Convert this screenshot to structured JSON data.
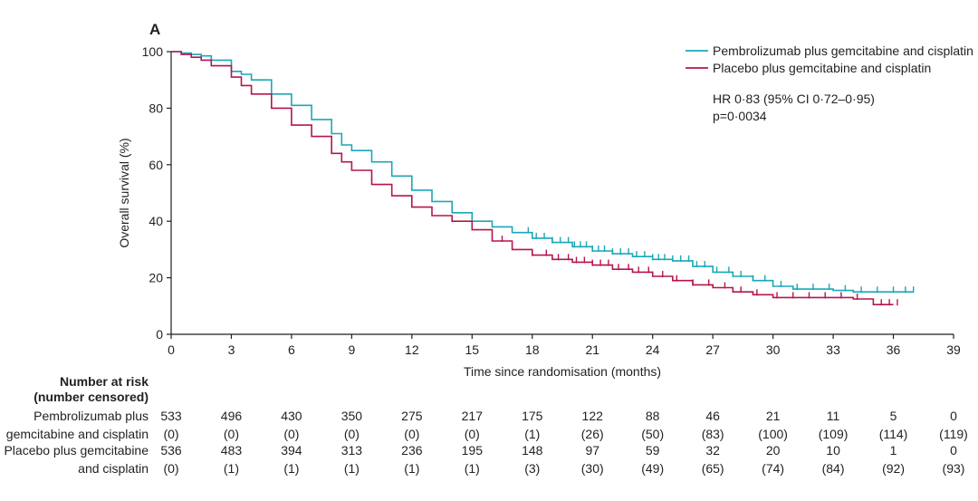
{
  "chart_data": {
    "type": "line",
    "panel_label": "A",
    "xlabel": "Time since randomisation (months)",
    "ylabel": "Overall survival (%)",
    "xlim": [
      0,
      39
    ],
    "ylim": [
      0,
      100
    ],
    "x_ticks": [
      0,
      3,
      6,
      9,
      12,
      15,
      18,
      21,
      24,
      27,
      30,
      33,
      36,
      39
    ],
    "y_ticks": [
      0,
      20,
      40,
      60,
      80,
      100
    ],
    "grid": false,
    "legend_position": "top-right",
    "hr_text": "HR 0·83 (95% CI 0·72–0·95)",
    "p_text": "p=0·0034",
    "series": [
      {
        "name": "Pembrolizumab plus gemcitabine and cisplatin",
        "color": "#1aa7b8",
        "x": [
          0,
          0.5,
          1,
          1.5,
          2,
          3,
          3.5,
          4,
          5,
          6,
          7,
          8,
          8.5,
          9,
          10,
          11,
          12,
          13,
          14,
          15,
          16,
          17,
          18,
          19,
          20,
          21,
          22,
          23,
          24,
          25,
          26,
          27,
          28,
          29,
          30,
          31,
          32,
          33,
          34,
          35,
          36,
          37
        ],
        "y": [
          100,
          99.5,
          99,
          98.5,
          97,
          93,
          92,
          90,
          85,
          81,
          76,
          71,
          67,
          65,
          61,
          56,
          51,
          47,
          43,
          40,
          38,
          36,
          34,
          32.5,
          31,
          29.5,
          28.5,
          27.5,
          26.5,
          26,
          24,
          22,
          20.5,
          19,
          17,
          16,
          16,
          15.5,
          15,
          15,
          15,
          15
        ],
        "censor_x": [
          17.8,
          18.2,
          18.6,
          19.0,
          19.4,
          19.8,
          20.1,
          20.4,
          20.7,
          21.0,
          21.3,
          21.6,
          22.0,
          22.4,
          22.8,
          23.2,
          23.6,
          24.0,
          24.3,
          24.6,
          25.0,
          25.4,
          25.8,
          26.2,
          26.6,
          27.2,
          27.8,
          28.4,
          29.0,
          29.6,
          30.4,
          31.2,
          32.0,
          32.8,
          33.6,
          34.4,
          35.2,
          36.0,
          36.6,
          37.0
        ]
      },
      {
        "name": "Placebo plus gemcitabine and cisplatin",
        "color": "#b5144f",
        "x": [
          0,
          0.5,
          1,
          1.5,
          2,
          3,
          3.5,
          4,
          5,
          6,
          7,
          8,
          8.5,
          9,
          10,
          11,
          12,
          13,
          14,
          15,
          16,
          17,
          18,
          19,
          20,
          21,
          22,
          23,
          24,
          25,
          26,
          27,
          28,
          29,
          30,
          31,
          32,
          33,
          34,
          35,
          36
        ],
        "y": [
          100,
          99,
          98,
          97,
          95,
          91,
          88,
          85,
          80,
          74,
          70,
          64,
          61,
          58,
          53,
          49,
          45,
          42,
          40,
          37,
          33,
          30,
          28,
          26.5,
          25.5,
          24.5,
          23,
          22,
          20.5,
          19,
          17.5,
          16.5,
          15,
          14,
          13,
          13,
          13,
          13,
          12.5,
          10.5,
          10.5
        ],
        "censor_x": [
          16.5,
          18.0,
          18.7,
          19.3,
          19.8,
          20.2,
          20.6,
          21.0,
          21.4,
          21.8,
          22.3,
          22.8,
          23.3,
          23.8,
          24.5,
          25.2,
          26.0,
          26.8,
          27.6,
          28.4,
          29.2,
          30.2,
          31.0,
          31.8,
          32.6,
          33.4,
          34.2,
          35.4,
          35.8,
          36.2
        ]
      }
    ]
  },
  "risk_table": {
    "title_line1": "Number at risk",
    "title_line2": "(number censored)",
    "rows": [
      {
        "label_line1": "Pembrolizumab plus",
        "label_line2": "gemcitabine and cisplatin",
        "at_risk": [
          "533",
          "496",
          "430",
          "350",
          "275",
          "217",
          "175",
          "122",
          "88",
          "46",
          "21",
          "11",
          "5",
          "0"
        ],
        "censored": [
          "(0)",
          "(0)",
          "(0)",
          "(0)",
          "(0)",
          "(0)",
          "(1)",
          "(26)",
          "(50)",
          "(83)",
          "(100)",
          "(109)",
          "(114)",
          "(119)"
        ]
      },
      {
        "label_line1": "Placebo plus gemcitabine",
        "label_line2": "and cisplatin",
        "at_risk": [
          "536",
          "483",
          "394",
          "313",
          "236",
          "195",
          "148",
          "97",
          "59",
          "32",
          "20",
          "10",
          "1",
          "0"
        ],
        "censored": [
          "(0)",
          "(1)",
          "(1)",
          "(1)",
          "(1)",
          "(1)",
          "(3)",
          "(30)",
          "(49)",
          "(65)",
          "(74)",
          "(84)",
          "(92)",
          "(93)"
        ]
      }
    ]
  }
}
